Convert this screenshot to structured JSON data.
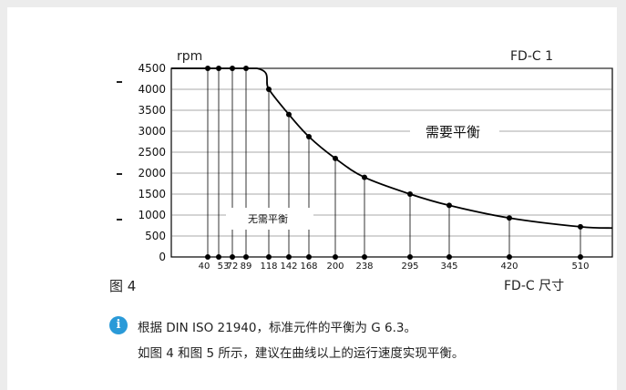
{
  "chart_data": {
    "type": "line",
    "title": "FD-C 1",
    "ylabel": "rpm",
    "xlabel": "FD-C 尺寸",
    "ylim": [
      0,
      4500
    ],
    "y_ticks": [
      0,
      500,
      1000,
      1500,
      2000,
      2500,
      3000,
      3500,
      4000,
      4500
    ],
    "x_tick_labels": [
      "40",
      "53",
      "72",
      "89",
      "118",
      "142",
      "168",
      "200",
      "238",
      "295",
      "345",
      "420",
      "510"
    ],
    "series": [
      {
        "x": [
          40,
          53,
          72,
          89,
          118,
          142,
          168,
          200,
          238,
          295,
          345,
          420,
          510
        ],
        "y": [
          4500,
          4500,
          4500,
          4500,
          4000,
          3400,
          2870,
          2350,
          1900,
          1500,
          1230,
          930,
          720
        ]
      }
    ],
    "region_labels": [
      "需要平衡",
      "无需平衡"
    ],
    "grid": true
  },
  "figure_label": "图 4",
  "note": {
    "line1": "根据 DIN ISO 21940，标准元件的平衡为 G 6.3。",
    "line2": "如图 4 和图 5 所示，建议在曲线以上的运行速度实现平衡。"
  },
  "colors": {
    "accent": "#2a9ad8",
    "line": "#000000"
  }
}
